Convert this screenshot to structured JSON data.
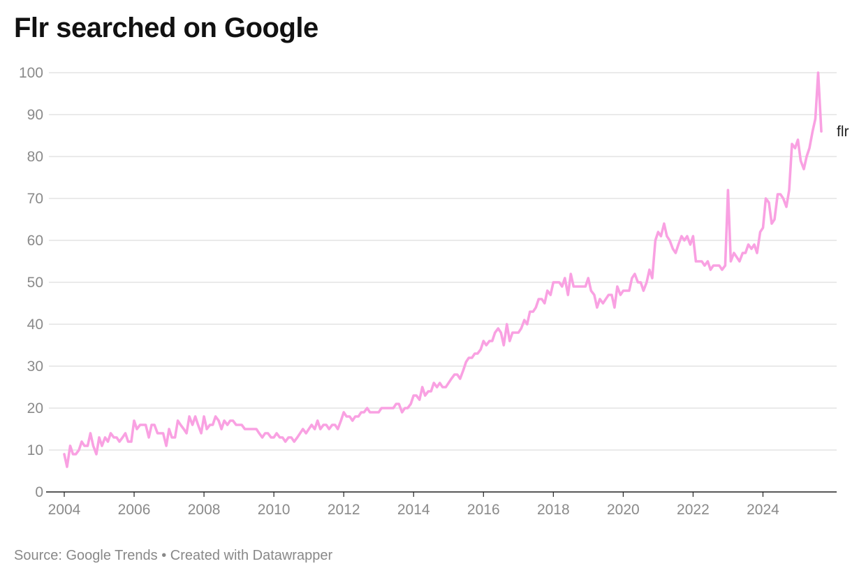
{
  "title": "Flr searched on Google",
  "footer": "Source: Google Trends • Created with Datawrapper",
  "chart_data": {
    "type": "line",
    "title": "Flr searched on Google",
    "xlabel": "",
    "ylabel": "",
    "xlim": [
      2004.0,
      2025.67
    ],
    "ylim": [
      0,
      100
    ],
    "yticks": [
      0,
      10,
      20,
      30,
      40,
      50,
      60,
      70,
      80,
      90,
      100
    ],
    "xticks": [
      2004,
      2006,
      2008,
      2010,
      2012,
      2014,
      2016,
      2018,
      2020,
      2022,
      2024
    ],
    "grid": true,
    "legend": "none",
    "colors": {
      "line": "#f9a1e2",
      "grid": "#dddddd",
      "axis": "#222222"
    },
    "series": [
      {
        "name": "flr",
        "points": [
          [
            2004.0,
            9
          ],
          [
            2004.08,
            6
          ],
          [
            2004.17,
            11
          ],
          [
            2004.25,
            9
          ],
          [
            2004.33,
            9
          ],
          [
            2004.42,
            10
          ],
          [
            2004.5,
            12
          ],
          [
            2004.58,
            11
          ],
          [
            2004.67,
            11
          ],
          [
            2004.75,
            14
          ],
          [
            2004.83,
            11
          ],
          [
            2004.92,
            9
          ],
          [
            2005.0,
            13
          ],
          [
            2005.08,
            11
          ],
          [
            2005.17,
            13
          ],
          [
            2005.25,
            12
          ],
          [
            2005.33,
            14
          ],
          [
            2005.42,
            13
          ],
          [
            2005.5,
            13
          ],
          [
            2005.58,
            12
          ],
          [
            2005.67,
            13
          ],
          [
            2005.75,
            14
          ],
          [
            2005.83,
            12
          ],
          [
            2005.92,
            12
          ],
          [
            2006.0,
            17
          ],
          [
            2006.08,
            15
          ],
          [
            2006.17,
            16
          ],
          [
            2006.25,
            16
          ],
          [
            2006.33,
            16
          ],
          [
            2006.42,
            13
          ],
          [
            2006.5,
            16
          ],
          [
            2006.58,
            16
          ],
          [
            2006.67,
            14
          ],
          [
            2006.75,
            14
          ],
          [
            2006.83,
            14
          ],
          [
            2006.92,
            11
          ],
          [
            2007.0,
            15
          ],
          [
            2007.08,
            13
          ],
          [
            2007.17,
            13
          ],
          [
            2007.25,
            17
          ],
          [
            2007.33,
            16
          ],
          [
            2007.42,
            15
          ],
          [
            2007.5,
            14
          ],
          [
            2007.58,
            18
          ],
          [
            2007.67,
            16
          ],
          [
            2007.75,
            18
          ],
          [
            2007.83,
            16
          ],
          [
            2007.92,
            14
          ],
          [
            2008.0,
            18
          ],
          [
            2008.08,
            15
          ],
          [
            2008.17,
            16
          ],
          [
            2008.25,
            16
          ],
          [
            2008.33,
            18
          ],
          [
            2008.42,
            17
          ],
          [
            2008.5,
            15
          ],
          [
            2008.58,
            17
          ],
          [
            2008.67,
            16
          ],
          [
            2008.75,
            17
          ],
          [
            2008.83,
            17
          ],
          [
            2008.92,
            16
          ],
          [
            2009.0,
            16
          ],
          [
            2009.08,
            16
          ],
          [
            2009.17,
            15
          ],
          [
            2009.25,
            15
          ],
          [
            2009.33,
            15
          ],
          [
            2009.42,
            15
          ],
          [
            2009.5,
            15
          ],
          [
            2009.58,
            14
          ],
          [
            2009.67,
            13
          ],
          [
            2009.75,
            14
          ],
          [
            2009.83,
            14
          ],
          [
            2009.92,
            13
          ],
          [
            2010.0,
            13
          ],
          [
            2010.08,
            14
          ],
          [
            2010.17,
            13
          ],
          [
            2010.25,
            13
          ],
          [
            2010.33,
            12
          ],
          [
            2010.42,
            13
          ],
          [
            2010.5,
            13
          ],
          [
            2010.58,
            12
          ],
          [
            2010.67,
            13
          ],
          [
            2010.75,
            14
          ],
          [
            2010.83,
            15
          ],
          [
            2010.92,
            14
          ],
          [
            2011.0,
            15
          ],
          [
            2011.08,
            16
          ],
          [
            2011.17,
            15
          ],
          [
            2011.25,
            17
          ],
          [
            2011.33,
            15
          ],
          [
            2011.42,
            16
          ],
          [
            2011.5,
            16
          ],
          [
            2011.58,
            15
          ],
          [
            2011.67,
            16
          ],
          [
            2011.75,
            16
          ],
          [
            2011.83,
            15
          ],
          [
            2011.92,
            17
          ],
          [
            2012.0,
            19
          ],
          [
            2012.08,
            18
          ],
          [
            2012.17,
            18
          ],
          [
            2012.25,
            17
          ],
          [
            2012.33,
            18
          ],
          [
            2012.42,
            18
          ],
          [
            2012.5,
            19
          ],
          [
            2012.58,
            19
          ],
          [
            2012.67,
            20
          ],
          [
            2012.75,
            19
          ],
          [
            2012.83,
            19
          ],
          [
            2012.92,
            19
          ],
          [
            2013.0,
            19
          ],
          [
            2013.08,
            20
          ],
          [
            2013.17,
            20
          ],
          [
            2013.25,
            20
          ],
          [
            2013.33,
            20
          ],
          [
            2013.42,
            20
          ],
          [
            2013.5,
            21
          ],
          [
            2013.58,
            21
          ],
          [
            2013.67,
            19
          ],
          [
            2013.75,
            20
          ],
          [
            2013.83,
            20
          ],
          [
            2013.92,
            21
          ],
          [
            2014.0,
            23
          ],
          [
            2014.08,
            23
          ],
          [
            2014.17,
            22
          ],
          [
            2014.25,
            25
          ],
          [
            2014.33,
            23
          ],
          [
            2014.42,
            24
          ],
          [
            2014.5,
            24
          ],
          [
            2014.58,
            26
          ],
          [
            2014.67,
            25
          ],
          [
            2014.75,
            26
          ],
          [
            2014.83,
            25
          ],
          [
            2014.92,
            25
          ],
          [
            2015.0,
            26
          ],
          [
            2015.08,
            27
          ],
          [
            2015.17,
            28
          ],
          [
            2015.25,
            28
          ],
          [
            2015.33,
            27
          ],
          [
            2015.42,
            29
          ],
          [
            2015.5,
            31
          ],
          [
            2015.58,
            32
          ],
          [
            2015.67,
            32
          ],
          [
            2015.75,
            33
          ],
          [
            2015.83,
            33
          ],
          [
            2015.92,
            34
          ],
          [
            2016.0,
            36
          ],
          [
            2016.08,
            35
          ],
          [
            2016.17,
            36
          ],
          [
            2016.25,
            36
          ],
          [
            2016.33,
            38
          ],
          [
            2016.42,
            39
          ],
          [
            2016.5,
            38
          ],
          [
            2016.58,
            35
          ],
          [
            2016.67,
            40
          ],
          [
            2016.75,
            36
          ],
          [
            2016.83,
            38
          ],
          [
            2016.92,
            38
          ],
          [
            2017.0,
            38
          ],
          [
            2017.08,
            39
          ],
          [
            2017.17,
            41
          ],
          [
            2017.25,
            40
          ],
          [
            2017.33,
            43
          ],
          [
            2017.42,
            43
          ],
          [
            2017.5,
            44
          ],
          [
            2017.58,
            46
          ],
          [
            2017.67,
            46
          ],
          [
            2017.75,
            45
          ],
          [
            2017.83,
            48
          ],
          [
            2017.92,
            47
          ],
          [
            2018.0,
            50
          ],
          [
            2018.08,
            50
          ],
          [
            2018.17,
            50
          ],
          [
            2018.25,
            49
          ],
          [
            2018.33,
            51
          ],
          [
            2018.42,
            47
          ],
          [
            2018.5,
            52
          ],
          [
            2018.58,
            49
          ],
          [
            2018.67,
            49
          ],
          [
            2018.75,
            49
          ],
          [
            2018.83,
            49
          ],
          [
            2018.92,
            49
          ],
          [
            2019.0,
            51
          ],
          [
            2019.08,
            48
          ],
          [
            2019.17,
            47
          ],
          [
            2019.25,
            44
          ],
          [
            2019.33,
            46
          ],
          [
            2019.42,
            45
          ],
          [
            2019.5,
            46
          ],
          [
            2019.58,
            47
          ],
          [
            2019.67,
            47
          ],
          [
            2019.75,
            44
          ],
          [
            2019.83,
            49
          ],
          [
            2019.92,
            47
          ],
          [
            2020.0,
            48
          ],
          [
            2020.08,
            48
          ],
          [
            2020.17,
            48
          ],
          [
            2020.25,
            51
          ],
          [
            2020.33,
            52
          ],
          [
            2020.42,
            50
          ],
          [
            2020.5,
            50
          ],
          [
            2020.58,
            48
          ],
          [
            2020.67,
            50
          ],
          [
            2020.75,
            53
          ],
          [
            2020.83,
            51
          ],
          [
            2020.92,
            60
          ],
          [
            2021.0,
            62
          ],
          [
            2021.08,
            61
          ],
          [
            2021.17,
            64
          ],
          [
            2021.25,
            61
          ],
          [
            2021.33,
            60
          ],
          [
            2021.42,
            58
          ],
          [
            2021.5,
            57
          ],
          [
            2021.58,
            59
          ],
          [
            2021.67,
            61
          ],
          [
            2021.75,
            60
          ],
          [
            2021.83,
            61
          ],
          [
            2021.92,
            59
          ],
          [
            2022.0,
            61
          ],
          [
            2022.08,
            55
          ],
          [
            2022.17,
            55
          ],
          [
            2022.25,
            55
          ],
          [
            2022.33,
            54
          ],
          [
            2022.42,
            55
          ],
          [
            2022.5,
            53
          ],
          [
            2022.58,
            54
          ],
          [
            2022.67,
            54
          ],
          [
            2022.75,
            54
          ],
          [
            2022.83,
            53
          ],
          [
            2022.92,
            54
          ],
          [
            2023.0,
            72
          ],
          [
            2023.08,
            55
          ],
          [
            2023.17,
            57
          ],
          [
            2023.25,
            56
          ],
          [
            2023.33,
            55
          ],
          [
            2023.42,
            57
          ],
          [
            2023.5,
            57
          ],
          [
            2023.58,
            59
          ],
          [
            2023.67,
            58
          ],
          [
            2023.75,
            59
          ],
          [
            2023.83,
            57
          ],
          [
            2023.92,
            62
          ],
          [
            2024.0,
            63
          ],
          [
            2024.08,
            70
          ],
          [
            2024.17,
            69
          ],
          [
            2024.25,
            64
          ],
          [
            2024.33,
            65
          ],
          [
            2024.42,
            71
          ],
          [
            2024.5,
            71
          ],
          [
            2024.58,
            70
          ],
          [
            2024.67,
            68
          ],
          [
            2024.75,
            72
          ],
          [
            2024.83,
            83
          ],
          [
            2024.92,
            82
          ],
          [
            2025.0,
            84
          ],
          [
            2025.08,
            79
          ],
          [
            2025.17,
            77
          ],
          [
            2025.25,
            80
          ],
          [
            2025.33,
            82
          ],
          [
            2025.42,
            86
          ],
          [
            2025.5,
            89
          ],
          [
            2025.58,
            100
          ],
          [
            2025.67,
            86
          ]
        ]
      }
    ]
  }
}
